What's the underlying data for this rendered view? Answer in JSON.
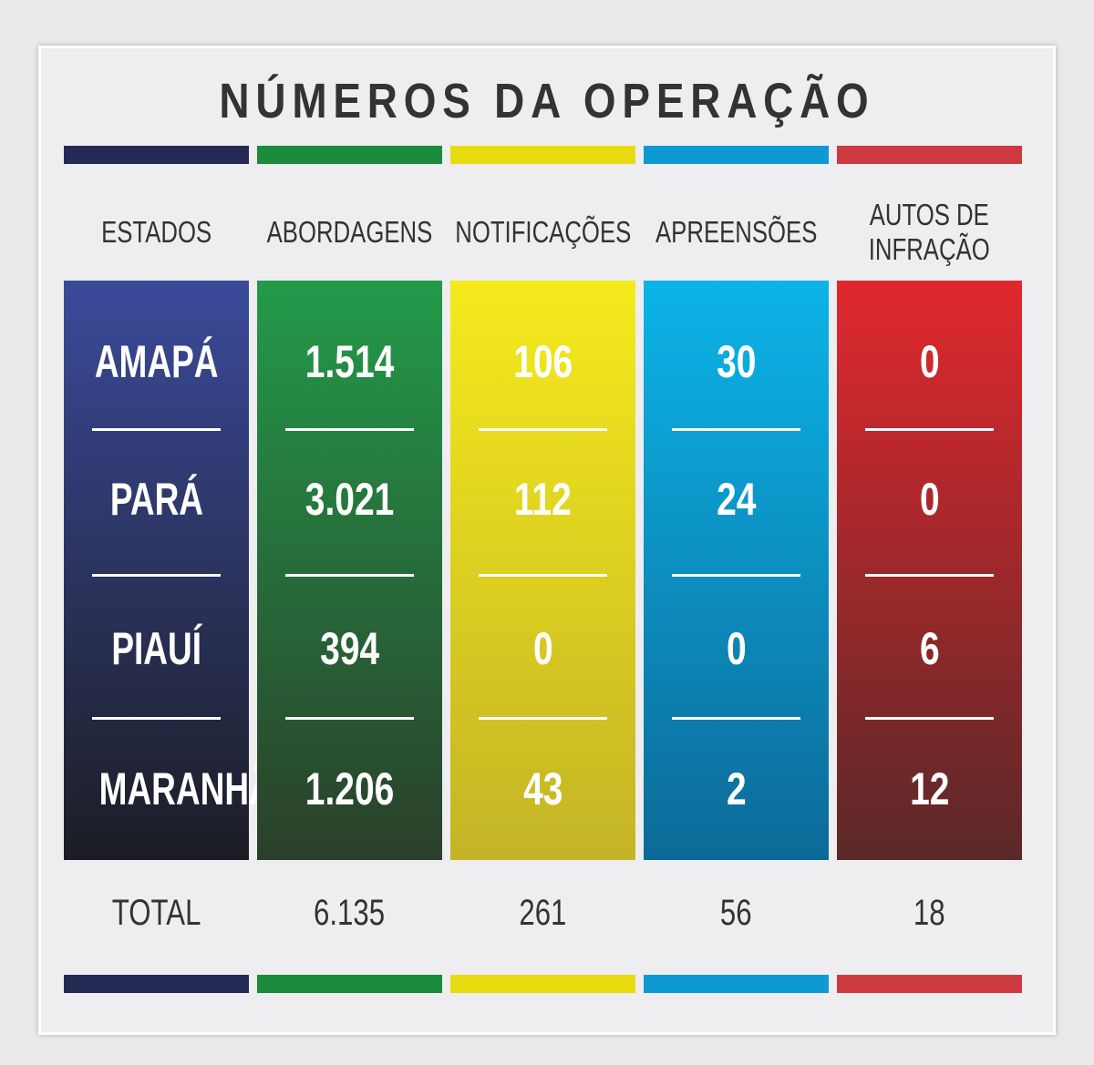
{
  "title": "NÚMEROS DA OPERAÇÃO",
  "chart_data": {
    "type": "table",
    "title": "NÚMEROS DA OPERAÇÃO",
    "columns": [
      {
        "header": "ESTADOS",
        "color_top": "#3a4a9a",
        "color_bottom": "#1c1d24",
        "bar": "#252a55"
      },
      {
        "header": "ABORDAGENS",
        "color_top": "#239a4a",
        "color_bottom": "#2a3f2a",
        "bar": "#1c8b3c"
      },
      {
        "header": "NOTIFICAÇÕES",
        "color_top": "#f5ea1c",
        "color_bottom": "#c4b426",
        "bar": "#e8dc10"
      },
      {
        "header": "APREENSÕES",
        "color_top": "#0cb4e8",
        "color_bottom": "#0c6a98",
        "bar": "#0d9ad4"
      },
      {
        "header": "AUTOS DE\nINFRAÇÃO",
        "color_top": "#e0282e",
        "color_bottom": "#5a2828",
        "bar": "#cc3a40"
      }
    ],
    "rows": [
      {
        "estado": "AMAPÁ",
        "values": [
          "1.514",
          "106",
          "30",
          "0"
        ]
      },
      {
        "estado": "PARÁ",
        "values": [
          "3.021",
          "112",
          "24",
          "0"
        ]
      },
      {
        "estado": "PIAUÍ",
        "values": [
          "394",
          "0",
          "0",
          "6"
        ]
      },
      {
        "estado": "MARANHÃO",
        "values": [
          "1.206",
          "43",
          "2",
          "12"
        ]
      }
    ],
    "total": {
      "label": "TOTAL",
      "values": [
        "6.135",
        "261",
        "56",
        "18"
      ]
    }
  }
}
